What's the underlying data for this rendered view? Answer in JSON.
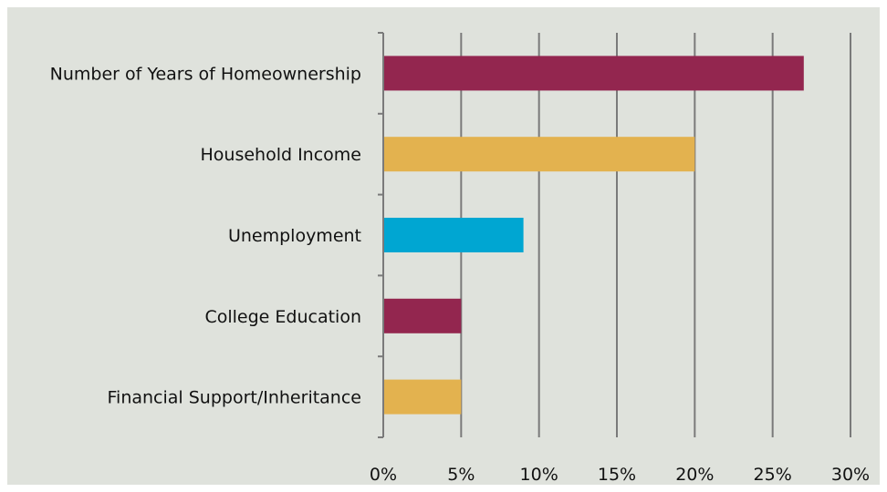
{
  "chart_data": {
    "type": "bar",
    "orientation": "horizontal",
    "categories": [
      "Number of Years of Homeownership",
      "Household Income",
      "Unemployment",
      "College Education",
      "Financial Support/Inheritance"
    ],
    "values": [
      27,
      20,
      9,
      5,
      5
    ],
    "bar_colors": [
      "#93264f",
      "#e3b24f",
      "#00a6d2",
      "#93264f",
      "#e3b24f"
    ],
    "xlim": [
      0,
      30
    ],
    "x_ticks": [
      0,
      5,
      10,
      15,
      20,
      25,
      30
    ],
    "x_tick_labels": [
      "0%",
      "5%",
      "10%",
      "15%",
      "20%",
      "25%",
      "30%"
    ],
    "grid": "vertical",
    "title": "",
    "xlabel": "",
    "ylabel": ""
  }
}
